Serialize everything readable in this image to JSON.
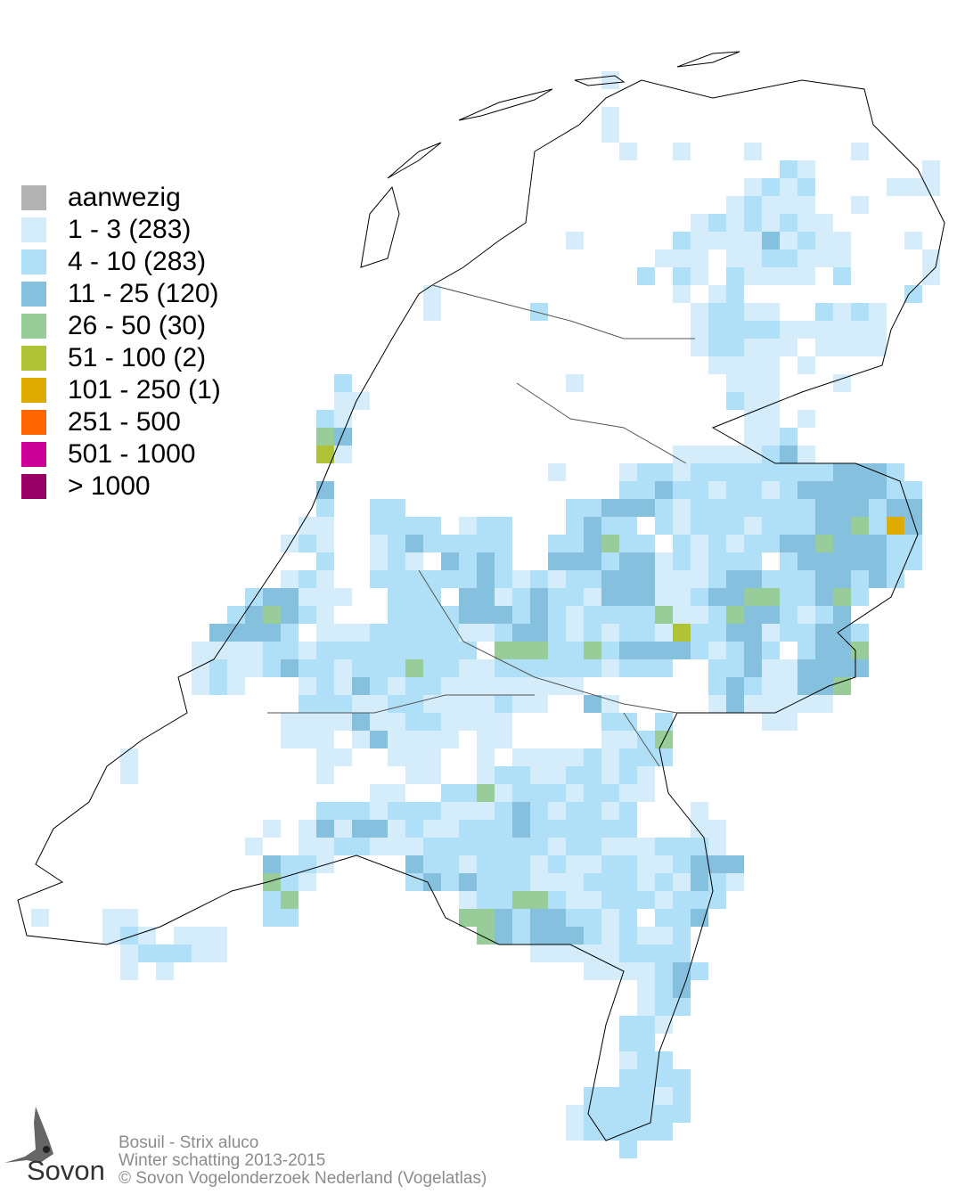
{
  "legend": {
    "items": [
      {
        "label": "aanwezig",
        "color": "#b3b3b3"
      },
      {
        "label": "1 - 3 (283)",
        "color": "#d5ecfb"
      },
      {
        "label": "4 - 10 (283)",
        "color": "#b0e0f8"
      },
      {
        "label": "11 - 25 (120)",
        "color": "#86c0df"
      },
      {
        "label": "26 - 50 (30)",
        "color": "#98cc98"
      },
      {
        "label": "51 - 100 (2)",
        "color": "#b0c236"
      },
      {
        "label": "101 - 250 (1)",
        "color": "#e0ab00"
      },
      {
        "label": "251 - 500",
        "color": "#ff6600"
      },
      {
        "label": "501 - 1000",
        "color": "#cc0099"
      },
      {
        "label": "> 1000",
        "color": "#990066"
      }
    ]
  },
  "footer": {
    "line1": "Bosuil - Strix aluco",
    "line2": "Winter schatting 2013-2015",
    "line3": "© Sovon Vogelonderzoek Nederland (Vogelatlas)"
  },
  "logo": {
    "text": "Sovon",
    "icon": "swallow-icon"
  },
  "map": {
    "outline_color": "#000000",
    "grid_rows": [
      "33:1",
      "",
      "33:1",
      "33:1",
      "34:1 37:1 41:1 47:1",
      "43:2 44:1 51:1",
      "41:1 42:2 43:1 44:2 49:1 50:1 51:1",
      "40:1 41:2 42:1 43:1 44:1 47:1",
      "38:1 39:2 40:1 41:2 42:1 43:2 44:1 45:1",
      "31:1 37:2 38:1 39:1 40:1 41:1 42:3 43:1 44:2 45:1 46:1 50:1",
      "36:1 37:1 38:1 40:1 41:1 42:2 43:2 44:1 45:1 46:1 51:1",
      "35:2 37:2 38:1 40:2 41:1 42:1 43:1 44:1 46:2 51:1",
      "23:1 37:1 39:1 40:2 50:2",
      "23:1 29:2 38:1 39:2 40:2 41:1 42:1 45:2 46:1 47:2 48:1",
      "38:1 39:2 40:2 41:2 42:2 43:1 44:1 45:1 46:1 47:1 48:1",
      "38:1 39:2 40:2 41:1 42:1 43:1 45:1 46:1 47:1 48:1",
      "39:1 40:1 41:1 42:1 44:1",
      "18:2 31:1 40:1 41:1 42:1 46:1",
      "18:1 19:1 40:2 41:1 42:1",
      "17:2 18:1 41:1 42:1 44:1",
      "17:4 18:3 41:1 42:1 43:2",
      "17:5 18:1 37:1 38:1 39:1 40:1 41:1 42:2 43:3 44:1",
      "30:1 34:1 35:2 36:2 37:1 38:2 39:2 40:2 41:2 42:2 43:2 44:2 45:2 46:3 47:3 48:3 49:2",
      "17:3 34:2 35:2 36:3 37:2 38:2 39:1 40:2 41:2 42:1 43:2 44:3 45:3 46:3 47:3 48:3 49:2 50:2",
      "17:2 20:2 21:2 31:2 32:2 33:3 34:3 35:3 36:2 37:1 38:2 39:2 40:2 41:2 42:2 43:2 44:2 45:3 46:3 47:3 48:2 49:3 50:3",
      "16:1 17:1 20:2 21:2 22:2 23:2 25:1 26:2 27:2 31:2 32:3 33:2 34:2 36:2 37:1 38:2 39:2 40:2 41:1 42:2 43:2 44:2 45:3 46:3 47:4 48:2 49:6 50:3",
      "15:1 16:2 17:1 20:1 21:2 22:3 23:2 24:2 25:2 26:2 27:2 30:2 31:2 32:3 33:4 34:2 35:2 37:2 38:1 39:2 40:1 41:2 42:2 43:3 44:3 45:4 46:3 47:3 48:3 49:2 50:2",
      "17:2 20:1 21:2 22:1 24:3 25:2 26:3 27:2 30:3 31:3 32:3 33:2 34:3 35:3 36:1 37:2 38:1 39:2 40:2 41:2 43:2 44:3 45:3 46:3 47:3 48:3 49:2 50:2",
      "15:1 16:2 17:1 20:2 21:2 22:2 23:2 24:2 25:2 26:3 27:2 28:1 29:2 30:1 31:2 32:2 33:3 34:3 35:3 36:1 37:1 38:1 39:2 40:3 41:3 42:2 43:2 44:2 45:3 46:3 47:2 48:3 49:2",
      "13:2 14:3 15:3 16:1 17:1 18:1 21:2 22:2 23:2 25:3 26:3 27:1 28:2 29:3 30:2 31:2 32:1 33:3 34:3 35:3 36:1 37:1 38:2 39:3 40:3 41:4 42:4 43:2 44:2 45:3 46:4 47:2",
      "12:2 13:3 14:4 15:3 16:2 17:1 21:2 22:2 23:2 24:2 25:3 26:3 27:3 28:2 29:3 30:2 31:1 32:2 33:2 34:2 35:2 36:4 37:1 38:1 39:2 40:4 41:3 42:3 43:2 44:1 45:2 46:3",
      "11:3 12:3 13:3 14:3 15:2 17:1 18:1 19:1 20:2 21:2 22:2 23:2 24:2 25:1 26:1 27:2 28:3 29:3 30:2 31:1 32:2 33:1 34:2 35:2 36:1 37:5 38:2 39:2 40:3 41:3 42:1 43:2 44:2 45:3 46:3 47:2",
      "10:1 11:1 12:1 13:1 14:2 15:2 16:1 17:2 18:2 19:2 20:2 21:2 22:2 23:2 24:2 25:2 27:4 28:4 29:4 30:2 31:2 32:4 33:2 34:3 35:3 36:3 37:3 38:2 39:1 40:2 41:3 42:2 44:2 45:3 46:3 47:4",
      "10:1 11:2 12:1 13:1 14:2 15:3 16:2 17:2 18:1 19:2 20:2 21:2 22:4 23:2 24:2 25:1 26:1 27:2 28:2 29:2 30:2 31:2 32:2 33:1 34:2 35:2 36:2 39:2 40:2 41:3 42:1 43:1 44:3 45:3 46:3 47:3",
      "10:1 11:2 12:1 16:1 17:2 18:1 19:3 20:2 21:1 22:2 23:2 24:1 25:1 26:1 27:1 28:1 29:1 30:1 31:1 39:2 40:3 41:2 42:1 43:1 44:3 45:3 46:4",
      "16:2 17:2 18:2 19:1 20:1 21:2 22:2 23:1 24:1 25:1 26:1 27:2 28:1 29:1 32:3 33:1 39:1 40:3 41:1 42:1 43:1 44:1 45:1",
      "15:1 16:1 17:1 18:1 19:3 20:1 21:1 22:2 23:2 24:1 25:1 26:1 27:1 33:2 34:2 36:2 42:1 43:1",
      "15:1 16:1 17:1 19:1 20:3 21:1 22:1 23:1 24:1 26:1 27:1 33:1 34:1 35:2 36:4",
      "6:1 17:1 18:1 21:1 22:1 23:1 26:1 28:1 29:1 30:1 31:1 32:2 33:1 34:2 35:2 36:2",
      "6:1 17:1 22:1 23:1 26:1 27:2 28:2 29:1 30:1 31:2 32:2 33:1 34:2 35:1",
      "20:1 21:1 24:2 25:2 26:4 27:1 28:2 29:2 30:2 31:1 32:2 33:2 34:1 35:1",
      "17:2 18:2 19:2 20:1 21:2 22:2 23:2 24:1 25:1 26:1 27:2 28:3 29:2 30:1 31:2 32:2 33:1 34:2 38:1",
      "14:1 16:1 17:3 18:1 19:3 20:3 21:1 22:2 23:1 24:1 25:2 26:2 27:2 28:3 29:2 30:2 31:2 32:2 33:2 34:2 38:1 39:1",
      "13:1 16:1 17:1 18:2 19:2 20:1 21:1 22:1 23:2 24:2 25:2 26:2 27:2 28:2 29:2 30:1 31:2 32:2 33:1 34:1 35:1 36:2 37:2 38:2 39:1",
      "14:3 15:2 16:2 17:1 22:3 23:2 24:2 25:1 26:2 27:2 28:2 29:1 30:2 31:1 32:1 33:2 34:2 35:1 36:1 37:2 38:3 39:3 40:3",
      "14:4 15:2 16:1 22:2 23:3 24:2 25:3 26:2 27:2 28:2 29:1 30:1 31:1 32:2 33:2 34:2 35:1 36:2 37:1 38:3 39:2 40:1",
      "14:2 15:4 25:1 26:2 27:2 28:4 29:4 30:2 31:1 32:1 33:2 34:2 35:2 36:1 37:2 38:2 39:2",
      "1:1 5:1 6:1 14:2 15:2 25:4 26:4 27:3 28:2 29:3 30:3 31:2 32:2 33:1 34:2 36:2 37:2 38:3",
      "5:1 6:2 7:1 9:1 10:1 11:1 26:4 27:3 28:2 29:3 30:3 31:3 32:2 33:1 34:2 35:1 36:1 37:2",
      "6:1 7:2 8:2 9:2 10:1 11:1 29:1 30:1 31:1 32:1 33:1 34:2 35:2 36:2 37:2",
      "6:1 8:1 32:1 33:1 34:1 35:1 36:2 37:3 38:2",
      "35:1 36:2 37:3",
      "35:1 36:2 37:2",
      "34:2 35:2 36:1",
      "34:2 35:2",
      "34:1 35:2 36:2",
      "34:2 35:2 36:2 37:2",
      "32:2 33:2 34:2 35:2 36:1 37:2",
      "31:1 32:2 33:2 34:2 35:2 36:2 37:2",
      "31:1 32:2 33:2 34:2 35:2 36:2",
      "34:2"
    ]
  }
}
